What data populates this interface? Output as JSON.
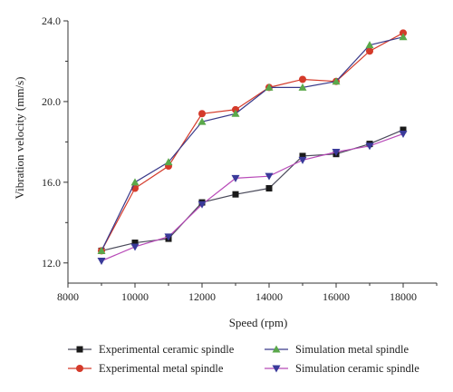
{
  "chart_data": {
    "type": "line",
    "xlabel": "Speed (rpm)",
    "ylabel": "Vibration velocity (mm/s)",
    "xlim": [
      8000,
      19000
    ],
    "ylim": [
      11.0,
      24.0
    ],
    "x_ticks": [
      8000,
      10000,
      12000,
      14000,
      16000,
      18000
    ],
    "y_ticks": [
      12.0,
      16.0,
      20.0,
      24.0
    ],
    "y_tick_labels": [
      "12.0",
      "16.0",
      "20.0",
      "24.0"
    ],
    "grid": false,
    "legend_position": "bottom",
    "x": [
      9000,
      10000,
      11000,
      12000,
      13000,
      14000,
      15000,
      16000,
      17000,
      18000
    ],
    "series": [
      {
        "name": "Experimental ceramic spindle",
        "marker": "square",
        "color": "#4a4a5a",
        "marker_color": "#1a1a1a",
        "values": [
          12.6,
          13.0,
          13.2,
          15.0,
          15.4,
          15.7,
          17.3,
          17.4,
          17.9,
          18.6
        ]
      },
      {
        "name": "Experimental metal spindle",
        "marker": "circle",
        "color": "#d43a2a",
        "marker_color": "#d43a2a",
        "values": [
          12.6,
          15.7,
          16.8,
          19.4,
          19.6,
          20.7,
          21.1,
          21.0,
          22.5,
          23.4
        ]
      },
      {
        "name": "Simulation metal spindle",
        "marker": "triangle-up",
        "color": "#3a3a8a",
        "marker_color": "#5aa84a",
        "values": [
          12.6,
          16.0,
          17.0,
          19.0,
          19.4,
          20.7,
          20.7,
          21.0,
          22.8,
          23.2
        ]
      },
      {
        "name": "Simulation ceramic spindle",
        "marker": "triangle-down",
        "color": "#b84ab8",
        "marker_color": "#3a3a9a",
        "values": [
          12.1,
          12.8,
          13.3,
          14.9,
          16.2,
          16.3,
          17.1,
          17.5,
          17.8,
          18.4
        ]
      }
    ]
  }
}
